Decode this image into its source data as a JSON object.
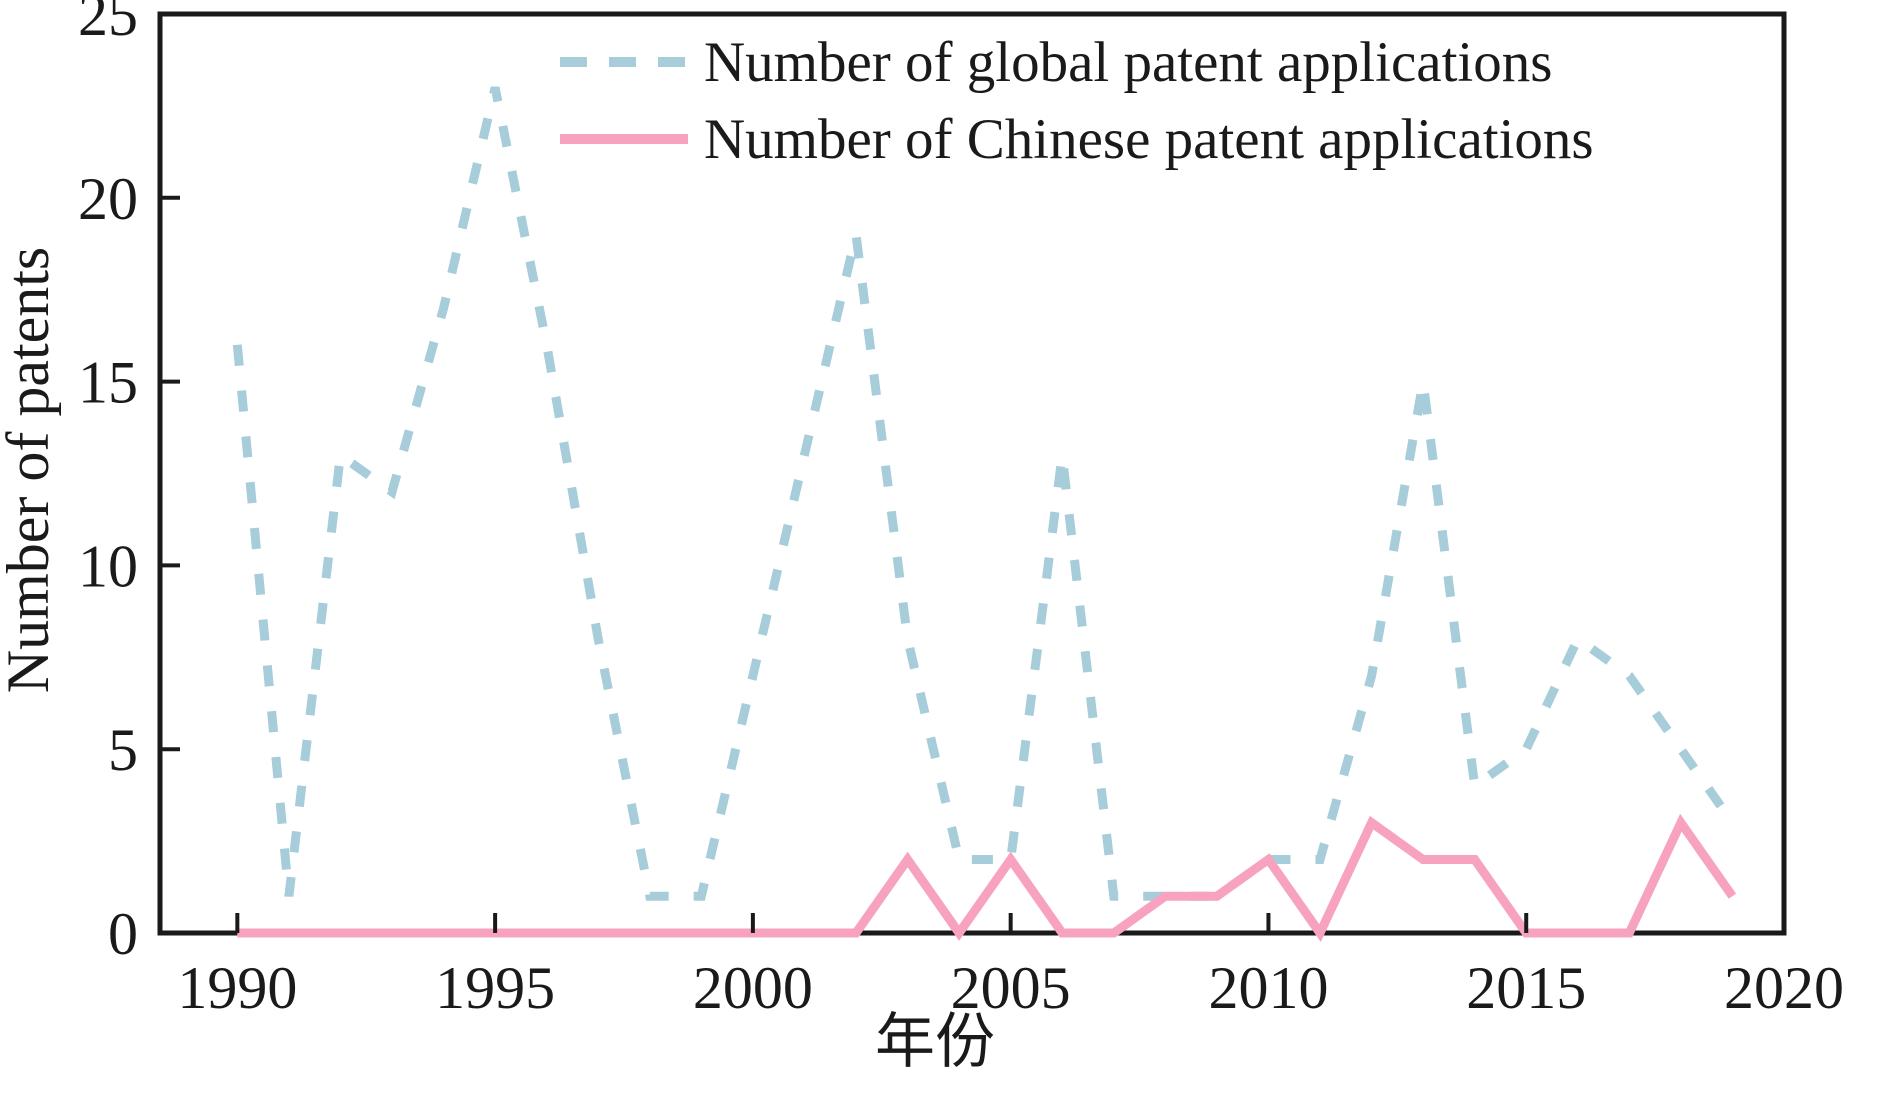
{
  "figure": {
    "ylabel": "Number of patents",
    "xlabel": "年份",
    "background": "#ffffff",
    "axis_color": "#1a1a1a"
  },
  "chart_data": {
    "type": "line",
    "title": "",
    "xlabel": "年份",
    "ylabel": "Number of patents",
    "x": [
      1990,
      1991,
      1992,
      1993,
      1994,
      1995,
      1996,
      1997,
      1998,
      1999,
      2000,
      2001,
      2002,
      2003,
      2004,
      2005,
      2006,
      2007,
      2008,
      2009,
      2010,
      2011,
      2012,
      2013,
      2014,
      2015,
      2016,
      2017,
      2018,
      2019
    ],
    "series": [
      {
        "name": "Number of global patent applications",
        "color": "#a6cdd9",
        "style": "dashed",
        "line_width": 9,
        "values": [
          16,
          1,
          13,
          12,
          17,
          23,
          16,
          8,
          1,
          1,
          7,
          13,
          19,
          8,
          2,
          2,
          13,
          1,
          1,
          1,
          2,
          2,
          7,
          15,
          4,
          5,
          8,
          7,
          5,
          3
        ]
      },
      {
        "name": "Number of Chinese patent applications",
        "color": "#f7a3bf",
        "style": "solid",
        "line_width": 9,
        "values": [
          0,
          0,
          0,
          0,
          0,
          0,
          0,
          0,
          0,
          0,
          0,
          0,
          0,
          2,
          0,
          2,
          0,
          0,
          1,
          1,
          2,
          0,
          3,
          2,
          2,
          0,
          0,
          0,
          3,
          1
        ]
      }
    ],
    "xticks": [
      1990,
      1995,
      2000,
      2005,
      2010,
      2015,
      2020
    ],
    "yticks": [
      0,
      5,
      10,
      15,
      20,
      25
    ],
    "xlim": [
      1988.5,
      2020
    ],
    "ylim": [
      0,
      25
    ],
    "grid": false,
    "legend_position": "top-left-inside",
    "tick_direction": "in"
  }
}
